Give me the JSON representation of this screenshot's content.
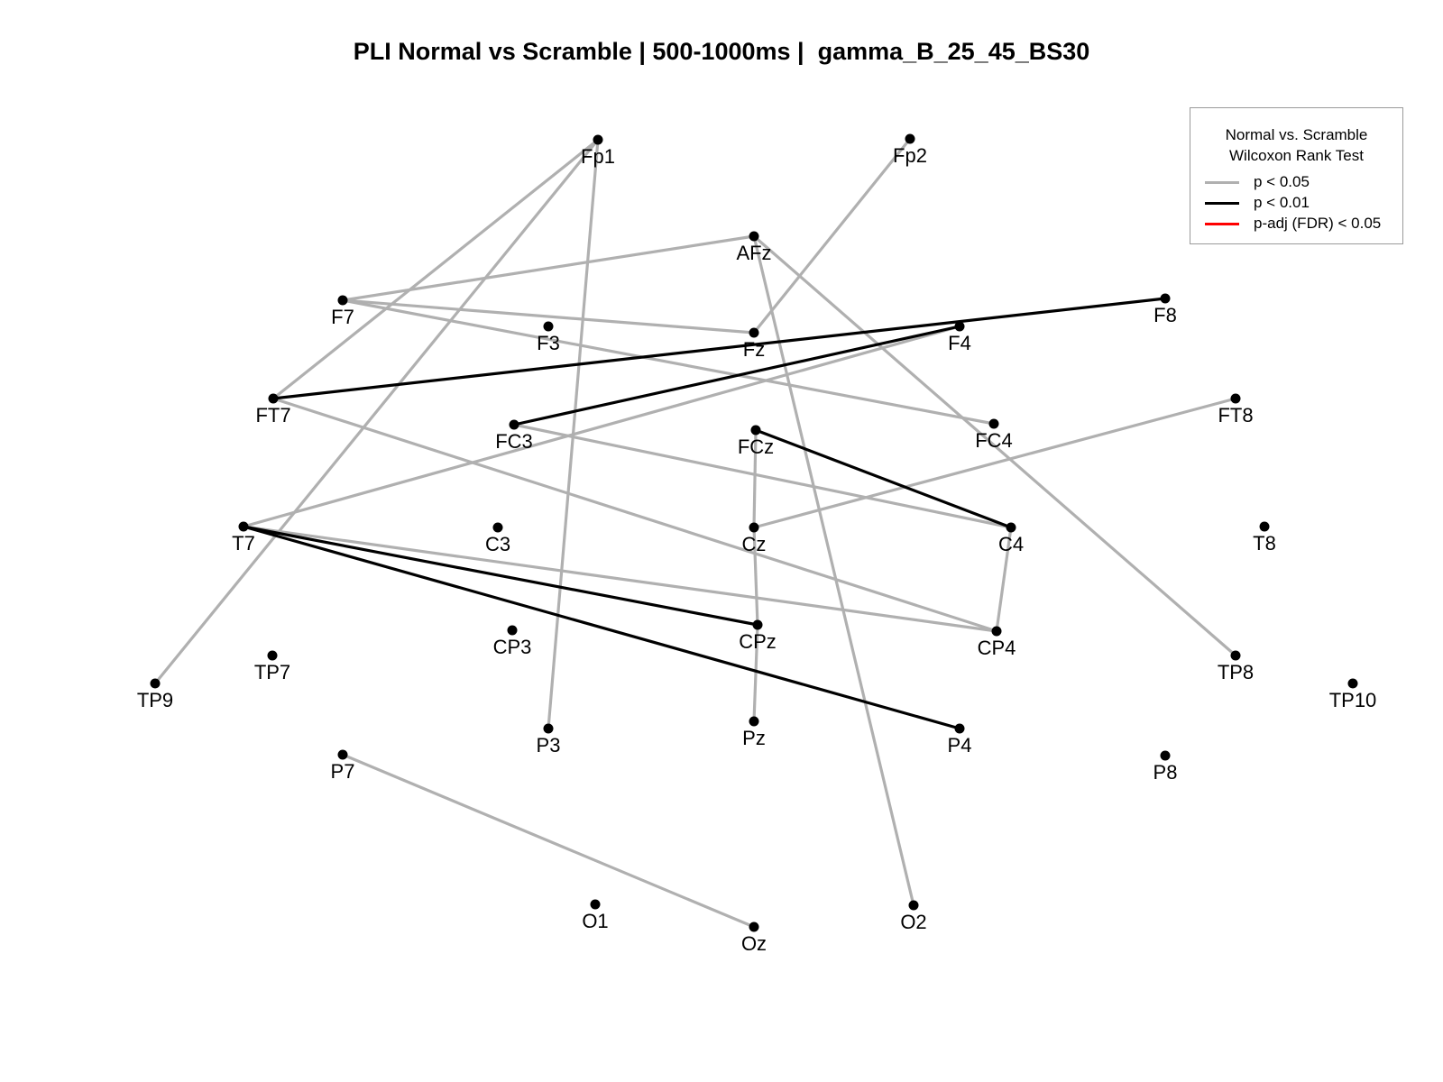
{
  "title": "PLI Normal vs Scramble | 500-1000ms |  gamma_B_25_45_BS30",
  "legend": {
    "title_line1": "Normal vs. Scramble",
    "title_line2": "Wilcoxon Rank Test",
    "items": [
      {
        "label": "p < 0.05",
        "color": "#b0b0b0"
      },
      {
        "label": "p < 0.01",
        "color": "#000000"
      },
      {
        "label": "p-adj (FDR) < 0.05",
        "color": "#ff0000"
      }
    ]
  },
  "electrodes": [
    "Fp1",
    "Fp2",
    "AFz",
    "F7",
    "F3",
    "Fz",
    "F4",
    "F8",
    "FT7",
    "FC3",
    "FCz",
    "FC4",
    "FT8",
    "T7",
    "C3",
    "Cz",
    "C4",
    "T8",
    "TP9",
    "TP7",
    "CP3",
    "CPz",
    "CP4",
    "TP8",
    "TP10",
    "P7",
    "P3",
    "Pz",
    "P4",
    "P8",
    "O1",
    "Oz",
    "O2"
  ],
  "connections": [
    {
      "from": "Fp1",
      "to": "FT7",
      "level": "p < 0.05"
    },
    {
      "from": "Fp1",
      "to": "TP9",
      "level": "p < 0.05"
    },
    {
      "from": "Fp1",
      "to": "P3",
      "level": "p < 0.05"
    },
    {
      "from": "Fp2",
      "to": "Fz",
      "level": "p < 0.05"
    },
    {
      "from": "AFz",
      "to": "F7",
      "level": "p < 0.05"
    },
    {
      "from": "AFz",
      "to": "O2",
      "level": "p < 0.05"
    },
    {
      "from": "AFz",
      "to": "TP8",
      "level": "p < 0.05"
    },
    {
      "from": "F7",
      "to": "Fz",
      "level": "p < 0.05"
    },
    {
      "from": "F7",
      "to": "FC4",
      "level": "p < 0.05"
    },
    {
      "from": "F4",
      "to": "T7",
      "level": "p < 0.05"
    },
    {
      "from": "FT7",
      "to": "CP4",
      "level": "p < 0.05"
    },
    {
      "from": "FC3",
      "to": "C4",
      "level": "p < 0.05"
    },
    {
      "from": "FCz",
      "to": "Cz",
      "level": "p < 0.05"
    },
    {
      "from": "Cz",
      "to": "FT8",
      "level": "p < 0.05"
    },
    {
      "from": "Cz",
      "to": "CPz",
      "level": "p < 0.05"
    },
    {
      "from": "CPz",
      "to": "Pz",
      "level": "p < 0.05"
    },
    {
      "from": "C4",
      "to": "CP4",
      "level": "p < 0.05"
    },
    {
      "from": "T7",
      "to": "CP4",
      "level": "p < 0.05"
    },
    {
      "from": "P7",
      "to": "Oz",
      "level": "p < 0.05"
    },
    {
      "from": "FT7",
      "to": "F8",
      "level": "p < 0.01"
    },
    {
      "from": "FC3",
      "to": "F4",
      "level": "p < 0.01"
    },
    {
      "from": "FCz",
      "to": "C4",
      "level": "p < 0.01"
    },
    {
      "from": "T7",
      "to": "CPz",
      "level": "p < 0.01"
    },
    {
      "from": "T7",
      "to": "P4",
      "level": "p < 0.01"
    }
  ]
}
